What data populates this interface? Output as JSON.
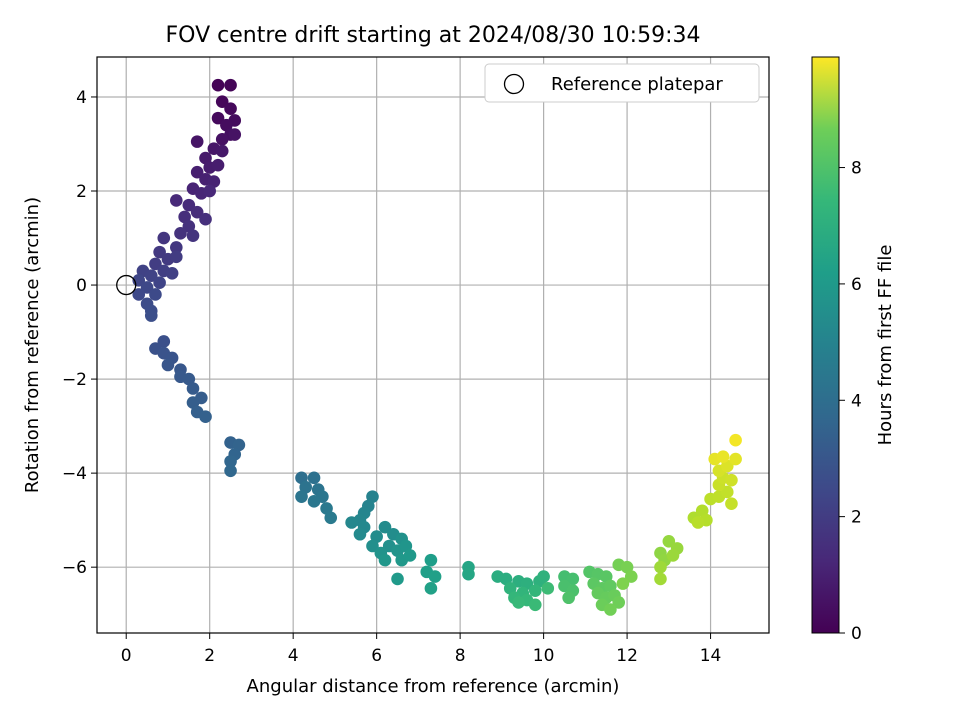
{
  "chart_data": {
    "type": "scatter",
    "title": "FOV centre drift starting at 2024/08/30 10:59:34",
    "xlabel": "Angular distance from reference (arcmin)",
    "ylabel": "Rotation from reference (arcmin)",
    "colorbar_label": "Hours from first FF file",
    "xlim": [
      -0.7,
      15.4
    ],
    "ylim": [
      -7.4,
      4.85
    ],
    "x_ticks": [
      0,
      2,
      4,
      6,
      8,
      10,
      12,
      14
    ],
    "y_ticks": [
      -6,
      -4,
      -2,
      0,
      2,
      4
    ],
    "colorbar_range": [
      0,
      9.9
    ],
    "colorbar_ticks": [
      0,
      2,
      4,
      6,
      8
    ],
    "colormap": "viridis",
    "grid": true,
    "legend": {
      "position": "top-right",
      "entries": [
        "Reference platepar"
      ]
    },
    "reference_point": {
      "x": 0,
      "y": 0
    },
    "series": [
      {
        "columns": [
          "x",
          "y",
          "hours"
        ],
        "points": [
          [
            2.2,
            4.25,
            0.05
          ],
          [
            2.5,
            4.25,
            0.1
          ],
          [
            2.3,
            3.9,
            0.15
          ],
          [
            2.5,
            3.75,
            0.2
          ],
          [
            2.2,
            3.55,
            0.25
          ],
          [
            2.6,
            3.5,
            0.3
          ],
          [
            2.4,
            3.4,
            0.35
          ],
          [
            2.5,
            3.2,
            0.4
          ],
          [
            2.3,
            3.1,
            0.45
          ],
          [
            2.6,
            3.2,
            0.5
          ],
          [
            1.7,
            3.05,
            0.55
          ],
          [
            2.1,
            2.9,
            0.6
          ],
          [
            2.3,
            2.85,
            0.65
          ],
          [
            1.9,
            2.7,
            0.7
          ],
          [
            2.0,
            2.5,
            0.75
          ],
          [
            2.2,
            2.55,
            0.8
          ],
          [
            1.7,
            2.4,
            0.85
          ],
          [
            1.9,
            2.25,
            0.9
          ],
          [
            2.1,
            2.2,
            0.95
          ],
          [
            1.6,
            2.05,
            1.0
          ],
          [
            1.8,
            1.95,
            1.05
          ],
          [
            2.0,
            2.0,
            1.1
          ],
          [
            1.2,
            1.8,
            1.15
          ],
          [
            1.5,
            1.7,
            1.2
          ],
          [
            1.7,
            1.55,
            1.25
          ],
          [
            1.4,
            1.45,
            1.3
          ],
          [
            1.9,
            1.4,
            1.35
          ],
          [
            1.5,
            1.25,
            1.4
          ],
          [
            1.3,
            1.1,
            1.45
          ],
          [
            1.6,
            1.05,
            1.5
          ],
          [
            0.9,
            1.0,
            1.55
          ],
          [
            1.2,
            0.8,
            1.6
          ],
          [
            0.8,
            0.7,
            1.65
          ],
          [
            1.0,
            0.55,
            1.7
          ],
          [
            1.2,
            0.6,
            1.75
          ],
          [
            0.7,
            0.45,
            1.8
          ],
          [
            0.9,
            0.3,
            1.85
          ],
          [
            1.1,
            0.25,
            1.9
          ],
          [
            0.4,
            0.3,
            1.95
          ],
          [
            0.6,
            0.2,
            2.0
          ],
          [
            0.8,
            0.05,
            2.05
          ],
          [
            0.3,
            0.1,
            2.1
          ],
          [
            0.5,
            -0.05,
            2.15
          ],
          [
            0.3,
            -0.2,
            2.2
          ],
          [
            0.7,
            -0.2,
            2.25
          ],
          [
            0.5,
            -0.4,
            2.3
          ],
          [
            0.6,
            -0.55,
            2.35
          ],
          [
            0.6,
            -0.65,
            2.4
          ],
          [
            0.9,
            -1.2,
            2.45
          ],
          [
            0.7,
            -1.35,
            2.5
          ],
          [
            0.9,
            -1.45,
            2.55
          ],
          [
            1.1,
            -1.55,
            2.6
          ],
          [
            1.0,
            -1.7,
            2.65
          ],
          [
            1.3,
            -1.8,
            2.7
          ],
          [
            1.3,
            -1.95,
            2.75
          ],
          [
            1.5,
            -2.0,
            2.8
          ],
          [
            1.6,
            -2.2,
            2.85
          ],
          [
            1.8,
            -2.4,
            2.9
          ],
          [
            1.6,
            -2.5,
            2.95
          ],
          [
            1.7,
            -2.7,
            3.0
          ],
          [
            1.9,
            -2.8,
            3.05
          ],
          [
            2.5,
            -3.35,
            3.1
          ],
          [
            2.7,
            -3.4,
            3.15
          ],
          [
            2.6,
            -3.6,
            3.2
          ],
          [
            2.5,
            -3.75,
            3.25
          ],
          [
            2.5,
            -3.95,
            3.3
          ],
          [
            4.2,
            -4.1,
            3.6
          ],
          [
            4.5,
            -4.1,
            3.7
          ],
          [
            4.3,
            -4.3,
            3.75
          ],
          [
            4.6,
            -4.35,
            3.8
          ],
          [
            4.2,
            -4.5,
            3.85
          ],
          [
            4.7,
            -4.5,
            3.9
          ],
          [
            4.5,
            -4.6,
            3.95
          ],
          [
            4.8,
            -4.75,
            4.0
          ],
          [
            4.9,
            -4.95,
            4.05
          ],
          [
            5.9,
            -4.5,
            4.4
          ],
          [
            5.8,
            -4.7,
            4.45
          ],
          [
            5.7,
            -4.85,
            4.5
          ],
          [
            5.6,
            -5.0,
            4.55
          ],
          [
            5.4,
            -5.05,
            4.6
          ],
          [
            5.7,
            -5.15,
            4.65
          ],
          [
            5.6,
            -5.3,
            4.7
          ],
          [
            6.2,
            -5.15,
            4.75
          ],
          [
            6.0,
            -5.35,
            4.8
          ],
          [
            6.4,
            -5.3,
            4.85
          ],
          [
            5.9,
            -5.55,
            4.9
          ],
          [
            6.3,
            -5.55,
            4.95
          ],
          [
            6.6,
            -5.4,
            5.0
          ],
          [
            6.1,
            -5.7,
            5.05
          ],
          [
            6.5,
            -5.65,
            5.1
          ],
          [
            6.7,
            -5.55,
            5.15
          ],
          [
            6.2,
            -5.85,
            5.2
          ],
          [
            6.6,
            -5.85,
            5.25
          ],
          [
            6.8,
            -5.75,
            5.3
          ],
          [
            6.5,
            -6.25,
            5.35
          ],
          [
            7.3,
            -5.85,
            5.5
          ],
          [
            7.2,
            -6.1,
            5.55
          ],
          [
            7.4,
            -6.2,
            5.6
          ],
          [
            7.3,
            -6.45,
            5.65
          ],
          [
            8.2,
            -6.0,
            5.8
          ],
          [
            8.2,
            -6.15,
            5.85
          ],
          [
            8.9,
            -6.2,
            6.1
          ],
          [
            9.1,
            -6.25,
            6.15
          ],
          [
            9.4,
            -6.3,
            6.2
          ],
          [
            9.6,
            -6.35,
            6.25
          ],
          [
            9.9,
            -6.3,
            6.3
          ],
          [
            10.0,
            -6.2,
            6.35
          ],
          [
            9.2,
            -6.45,
            6.4
          ],
          [
            9.5,
            -6.55,
            6.45
          ],
          [
            9.8,
            -6.5,
            6.5
          ],
          [
            9.3,
            -6.65,
            6.55
          ],
          [
            9.6,
            -6.7,
            6.6
          ],
          [
            9.4,
            -6.75,
            6.65
          ],
          [
            9.8,
            -6.8,
            6.7
          ],
          [
            10.1,
            -6.45,
            6.75
          ],
          [
            10.5,
            -6.2,
            6.9
          ],
          [
            10.7,
            -6.25,
            6.95
          ],
          [
            10.5,
            -6.4,
            7.0
          ],
          [
            10.7,
            -6.5,
            7.05
          ],
          [
            10.6,
            -6.65,
            7.1
          ],
          [
            11.1,
            -6.1,
            7.2
          ],
          [
            11.3,
            -6.15,
            7.25
          ],
          [
            11.5,
            -6.2,
            7.3
          ],
          [
            11.2,
            -6.35,
            7.35
          ],
          [
            11.4,
            -6.45,
            7.4
          ],
          [
            11.6,
            -6.4,
            7.45
          ],
          [
            11.3,
            -6.55,
            7.5
          ],
          [
            11.5,
            -6.65,
            7.55
          ],
          [
            11.7,
            -6.6,
            7.6
          ],
          [
            11.4,
            -6.8,
            7.65
          ],
          [
            11.8,
            -6.75,
            7.7
          ],
          [
            11.6,
            -6.9,
            7.75
          ],
          [
            11.8,
            -5.95,
            7.8
          ],
          [
            12.0,
            -6.0,
            7.85
          ],
          [
            12.1,
            -6.2,
            7.9
          ],
          [
            11.9,
            -6.35,
            7.95
          ],
          [
            12.8,
            -5.7,
            8.2
          ],
          [
            12.9,
            -5.85,
            8.25
          ],
          [
            13.0,
            -5.45,
            8.3
          ],
          [
            13.2,
            -5.6,
            8.35
          ],
          [
            13.1,
            -5.75,
            8.4
          ],
          [
            12.8,
            -6.0,
            8.45
          ],
          [
            12.8,
            -6.25,
            8.5
          ],
          [
            13.6,
            -4.95,
            8.7
          ],
          [
            13.8,
            -4.8,
            8.75
          ],
          [
            13.9,
            -5.0,
            8.8
          ],
          [
            13.7,
            -5.05,
            8.85
          ],
          [
            14.0,
            -4.55,
            8.9
          ],
          [
            14.2,
            -4.5,
            8.95
          ],
          [
            14.4,
            -4.4,
            9.0
          ],
          [
            14.5,
            -4.65,
            9.05
          ],
          [
            14.2,
            -4.25,
            9.1
          ],
          [
            14.3,
            -4.1,
            9.15
          ],
          [
            14.5,
            -4.15,
            9.2
          ],
          [
            14.2,
            -3.95,
            9.3
          ],
          [
            14.4,
            -3.85,
            9.4
          ],
          [
            14.6,
            -3.7,
            9.5
          ],
          [
            14.1,
            -3.7,
            9.55
          ],
          [
            14.3,
            -3.65,
            9.6
          ],
          [
            14.6,
            -3.3,
            9.75
          ]
        ]
      }
    ]
  }
}
